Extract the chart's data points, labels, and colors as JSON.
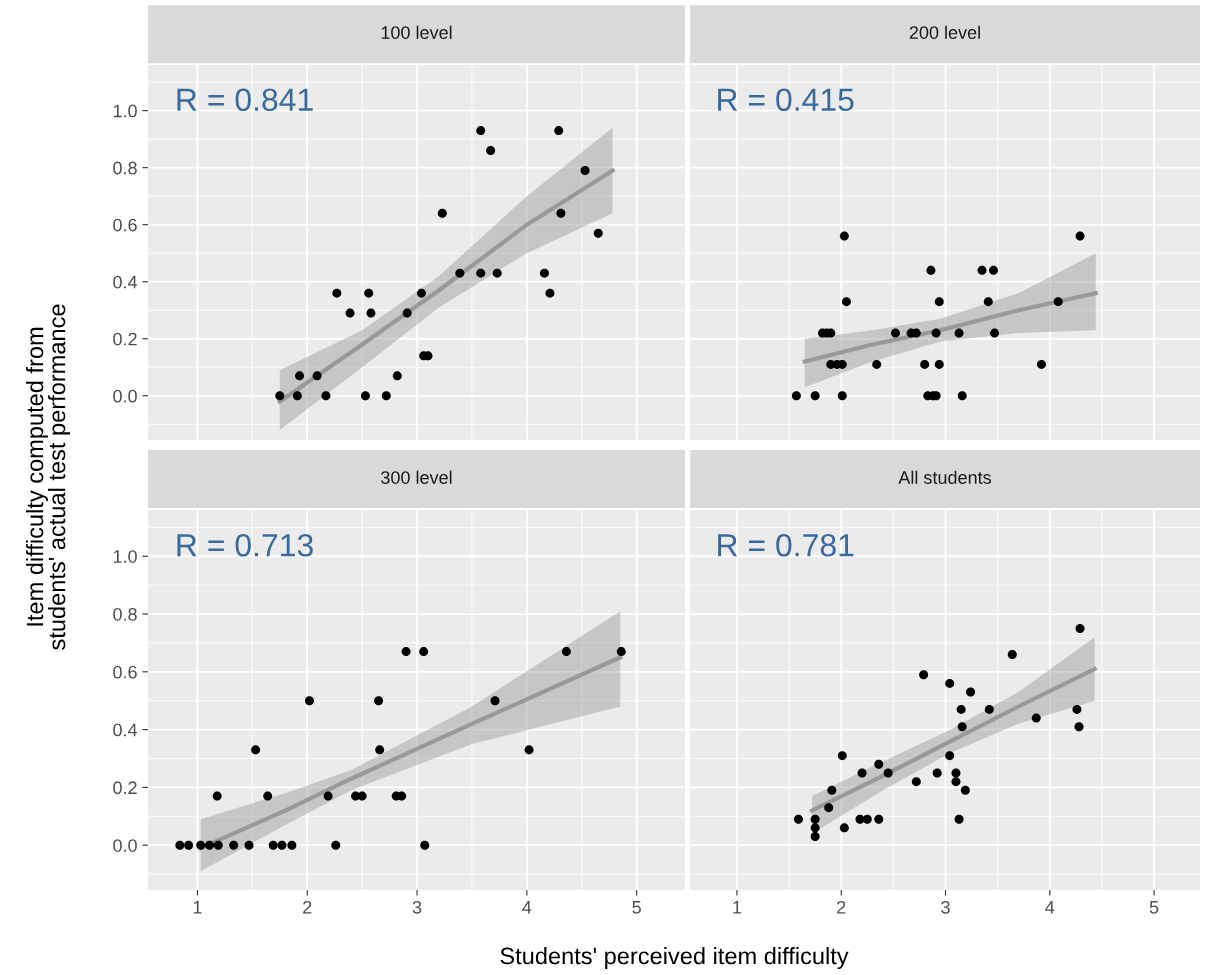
{
  "chart_data": [
    {
      "type": "scatter",
      "title": "100 level",
      "ylabel": "Item difficulty computed from\nstudents' actual test performance",
      "xlabel": "Students' perceived item difficulty",
      "annotations": [
        "R = 0.841"
      ],
      "xlim": [
        0.55,
        5.44
      ],
      "ylim": [
        -0.155,
        1.16
      ],
      "xticks": [
        {
          "value": 1,
          "label": null
        },
        {
          "value": 2,
          "label": null
        },
        {
          "value": 3,
          "label": null
        },
        {
          "value": 4,
          "label": null
        },
        {
          "value": 5,
          "label": null
        }
      ],
      "yticks": [
        {
          "value": 0,
          "label": "0.0"
        },
        {
          "value": 0.2,
          "label": "0.2"
        },
        {
          "value": 0.4,
          "label": "0.4"
        },
        {
          "value": 0.6,
          "label": "0.6"
        },
        {
          "value": 0.8,
          "label": "0.8"
        },
        {
          "value": 1.0,
          "label": "1.0"
        }
      ],
      "grid": true,
      "tick_labels": "y",
      "series": [
        {
          "marker": "circle",
          "color": "#000000",
          "x": [
            1.75,
            1.93,
            2.09,
            1.91,
            2.17,
            2.27,
            2.39,
            2.56,
            2.58,
            2.53,
            2.72,
            2.82,
            2.91,
            3.04,
            3.06,
            3.1,
            3.23,
            3.39,
            3.58,
            3.58,
            3.67,
            3.73,
            4.16,
            4.21,
            4.29,
            4.31,
            4.53,
            4.65
          ],
          "values": [
            0,
            0.07,
            0.07,
            0,
            0,
            0.36,
            0.29,
            0.36,
            0.29,
            0,
            0,
            0.07,
            0.29,
            0.36,
            0.14,
            0.14,
            0.64,
            0.43,
            0.93,
            0.43,
            0.86,
            0.43,
            0.43,
            0.36,
            0.93,
            0.64,
            0.79,
            0.57
          ]
        },
        {
          "type": "line",
          "color": "#999999",
          "x": [
            1.75,
            2.5,
            3.2,
            4.0,
            4.78
          ],
          "values": [
            -0.02,
            0.18,
            0.37,
            0.6,
            0.79
          ],
          "lower": [
            -0.12,
            0.1,
            0.31,
            0.5,
            0.64
          ],
          "upper": [
            0.09,
            0.23,
            0.42,
            0.7,
            0.94
          ]
        }
      ]
    },
    {
      "type": "scatter",
      "title": "200 level",
      "annotations": [
        "R = 0.415"
      ],
      "xlim": [
        0.55,
        5.44
      ],
      "ylim": [
        -0.155,
        1.16
      ],
      "xticks": [
        {
          "value": 1,
          "label": null
        },
        {
          "value": 2,
          "label": null
        },
        {
          "value": 3,
          "label": null
        },
        {
          "value": 4,
          "label": null
        },
        {
          "value": 5,
          "label": null
        }
      ],
      "yticks": [
        {
          "value": 0,
          "label": null
        },
        {
          "value": 0.2,
          "label": null
        },
        {
          "value": 0.4,
          "label": null
        },
        {
          "value": 0.6,
          "label": null
        },
        {
          "value": 0.8,
          "label": null
        },
        {
          "value": 1.0,
          "label": null
        }
      ],
      "grid": true,
      "tick_labels": false,
      "series": [
        {
          "marker": "circle",
          "color": "#000000",
          "x": [
            1.57,
            1.75,
            2.01,
            2.03,
            2.05,
            1.82,
            1.86,
            1.9,
            1.9,
            1.96,
            2.01,
            2.34,
            2.52,
            2.67,
            2.72,
            2.8,
            2.83,
            2.88,
            2.91,
            2.86,
            2.91,
            2.94,
            2.94,
            3.13,
            3.16,
            3.35,
            3.46,
            3.41,
            3.47,
            3.92,
            4.08,
            4.29
          ],
          "values": [
            0,
            0,
            0,
            0.56,
            0.33,
            0.22,
            0.22,
            0.22,
            0.11,
            0.11,
            0.11,
            0.11,
            0.22,
            0.22,
            0.22,
            0.11,
            0,
            0,
            0,
            0.44,
            0.22,
            0.33,
            0.11,
            0.22,
            0,
            0.44,
            0.44,
            0.33,
            0.22,
            0.11,
            0.33,
            0.56
          ]
        },
        {
          "type": "line",
          "color": "#999999",
          "x": [
            1.65,
            2.3,
            2.95,
            3.7,
            4.44
          ],
          "values": [
            0.12,
            0.18,
            0.23,
            0.3,
            0.36
          ],
          "lower": [
            0.03,
            0.12,
            0.19,
            0.22,
            0.23
          ],
          "upper": [
            0.2,
            0.23,
            0.27,
            0.36,
            0.5
          ]
        }
      ]
    },
    {
      "type": "scatter",
      "title": "300 level",
      "annotations": [
        "R = 0.713"
      ],
      "xlim": [
        0.55,
        5.44
      ],
      "ylim": [
        -0.155,
        1.16
      ],
      "xticks": [
        1,
        2,
        3,
        4,
        5
      ],
      "yticks": [
        {
          "value": 0,
          "label": "0.0"
        },
        {
          "value": 0.2,
          "label": "0.2"
        },
        {
          "value": 0.4,
          "label": "0.4"
        },
        {
          "value": 0.6,
          "label": "0.6"
        },
        {
          "value": 0.8,
          "label": "0.8"
        },
        {
          "value": 1.0,
          "label": "1.0"
        }
      ],
      "grid": true,
      "series": [
        {
          "marker": "circle",
          "color": "#000000",
          "x": [
            0.84,
            0.92,
            1.03,
            1.11,
            1.19,
            1.33,
            1.47,
            1.69,
            1.77,
            1.86,
            2.26,
            3.07,
            1.18,
            1.64,
            2.19,
            2.44,
            2.5,
            2.81,
            2.86,
            1.53,
            2.66,
            4.02,
            2.02,
            2.65,
            3.71,
            2.9,
            3.06,
            4.36,
            4.86
          ],
          "values": [
            0,
            0,
            0,
            0,
            0,
            0,
            0,
            0,
            0,
            0,
            0,
            0,
            0.17,
            0.17,
            0.17,
            0.17,
            0.17,
            0.17,
            0.17,
            0.33,
            0.33,
            0.33,
            0.5,
            0.5,
            0.5,
            0.67,
            0.67,
            0.67,
            0.67
          ]
        },
        {
          "type": "line",
          "color": "#999999",
          "x": [
            1.03,
            1.8,
            2.4,
            3.5,
            4.85
          ],
          "values": [
            -0.01,
            0.12,
            0.23,
            0.42,
            0.65
          ],
          "lower": [
            -0.09,
            0.07,
            0.19,
            0.35,
            0.48
          ],
          "upper": [
            0.09,
            0.18,
            0.26,
            0.48,
            0.81
          ]
        }
      ]
    },
    {
      "type": "scatter",
      "title": "All students",
      "annotations": [
        "R = 0.781"
      ],
      "xlim": [
        0.55,
        5.44
      ],
      "ylim": [
        -0.155,
        1.16
      ],
      "xticks": [
        1,
        2,
        3,
        4,
        5
      ],
      "yticks": [
        {
          "value": 0,
          "label": null
        },
        {
          "value": 0.2,
          "label": null
        },
        {
          "value": 0.4,
          "label": null
        },
        {
          "value": 0.6,
          "label": null
        },
        {
          "value": 0.8,
          "label": null
        },
        {
          "value": 1.0,
          "label": null
        }
      ],
      "grid": true,
      "tick_labels": "x",
      "series": [
        {
          "marker": "circle",
          "color": "#000000",
          "x": [
            1.59,
            1.75,
            1.75,
            1.75,
            1.88,
            1.91,
            2.01,
            2.03,
            2.18,
            2.25,
            2.36,
            2.2,
            2.36,
            2.45,
            2.72,
            2.79,
            2.92,
            3.04,
            3.04,
            3.1,
            3.1,
            3.13,
            3.15,
            3.16,
            3.19,
            3.24,
            3.42,
            3.64,
            3.87,
            4.26,
            4.28,
            4.29
          ],
          "values": [
            0.09,
            0.09,
            0.06,
            0.03,
            0.13,
            0.19,
            0.31,
            0.06,
            0.09,
            0.09,
            0.09,
            0.25,
            0.28,
            0.25,
            0.22,
            0.59,
            0.25,
            0.31,
            0.56,
            0.25,
            0.22,
            0.09,
            0.47,
            0.41,
            0.19,
            0.53,
            0.47,
            0.66,
            0.44,
            0.47,
            0.41,
            0.75
          ]
        },
        {
          "type": "line",
          "color": "#999999",
          "x": [
            1.72,
            2.4,
            3.05,
            3.7,
            4.43
          ],
          "values": [
            0.12,
            0.24,
            0.36,
            0.48,
            0.61
          ],
          "lower": [
            0.04,
            0.19,
            0.32,
            0.42,
            0.5
          ],
          "upper": [
            0.17,
            0.29,
            0.4,
            0.53,
            0.72
          ]
        }
      ]
    }
  ]
}
